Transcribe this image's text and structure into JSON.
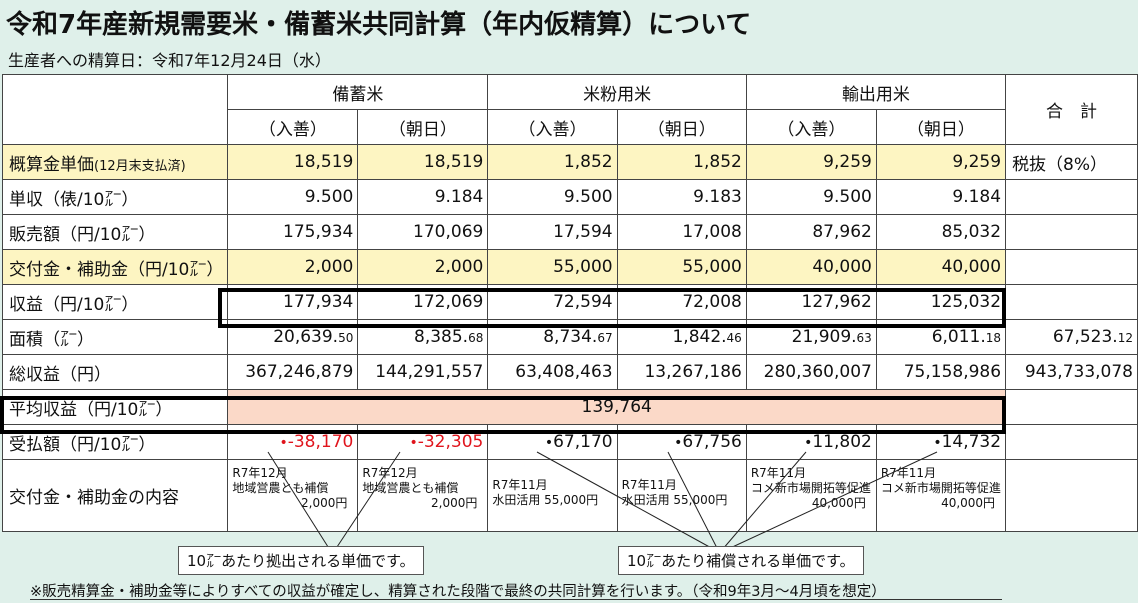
{
  "title": "令和7年産新規需要米・備蓄米共同計算（年内仮精算）について",
  "subtitle": "生産者への精算日：令和7年12月24日（水）",
  "groups": [
    "備蓄米",
    "米粉用米",
    "輸出用米"
  ],
  "total_header": "合　計",
  "subheaders": [
    "（入善）",
    "（朝日）",
    "（入善）",
    "（朝日）",
    "（入善）",
    "（朝日）"
  ],
  "rows": {
    "unit_price": {
      "label": "概算金単価",
      "label_small": "(12月末支払済)",
      "values": [
        "18,519",
        "18,519",
        "1,852",
        "1,852",
        "9,259",
        "9,259"
      ],
      "total": "税抜（8%）"
    },
    "yield": {
      "label": "単収（俵/10㌃）",
      "values": [
        "9.500",
        "9.184",
        "9.500",
        "9.183",
        "9.500",
        "9.184"
      ]
    },
    "sales": {
      "label": "販売額（円/10㌃）",
      "values": [
        "175,934",
        "170,069",
        "17,594",
        "17,008",
        "87,962",
        "85,032"
      ]
    },
    "subsidy": {
      "label": "交付金・補助金（円/10㌃）",
      "values": [
        "2,000",
        "2,000",
        "55,000",
        "55,000",
        "40,000",
        "40,000"
      ]
    },
    "profit": {
      "label": "収益（円/10㌃）",
      "values": [
        "177,934",
        "172,069",
        "72,594",
        "72,008",
        "127,962",
        "125,032"
      ]
    },
    "area": {
      "label": "面積（㌃）",
      "values_int": [
        "20,639.",
        "8,385.",
        "8,734.",
        "1,842.",
        "21,909.",
        "6,011."
      ],
      "values_dec": [
        "50",
        "68",
        "67",
        "46",
        "63",
        "18"
      ],
      "total_int": "67,523.",
      "total_dec": "12"
    },
    "total_profit": {
      "label": "総収益（円）",
      "values": [
        "367,246,879",
        "144,291,557",
        "63,408,463",
        "13,267,186",
        "280,360,007",
        "75,158,986"
      ],
      "total": "943,733,078"
    },
    "avg_profit": {
      "label": "平均収益（円/10㌃）",
      "value": "139,764"
    },
    "settlement": {
      "label": "受払額（円/10㌃）",
      "values": [
        "-38,170",
        "-32,305",
        "67,170",
        "67,756",
        "11,802",
        "14,732"
      ]
    },
    "subsidy_detail": {
      "label": "交付金・補助金の内容",
      "notes": [
        [
          "R7年12月",
          "地域営農とも補償",
          "2,000円"
        ],
        [
          "R7年12月",
          "地域営農とも補償",
          "2,000円"
        ],
        [
          "R7年11月",
          "水田活用 55,000円"
        ],
        [
          "R7年11月",
          "水田活用 55,000円"
        ],
        [
          "R7年11月",
          "コメ新市場開拓等促進",
          "40,000円"
        ],
        [
          "R7年11月",
          "コメ新市場開拓等促進",
          "40,000円"
        ]
      ]
    }
  },
  "callouts": {
    "left": "10㌃あたり拠出される単価です。",
    "right": "10㌃あたり補償される単価です。"
  },
  "footer": "※販売精算金・補助金等によりすべての収益が確定し、精算された段階で最終の共同計算を行います。（令和9年3月～4月頃を想定）",
  "colors": {
    "yellow_cell": "#fdf5c2",
    "pink_cell": "#fbd9c8",
    "negative": "#e0141c",
    "background": "#dff0ea"
  }
}
